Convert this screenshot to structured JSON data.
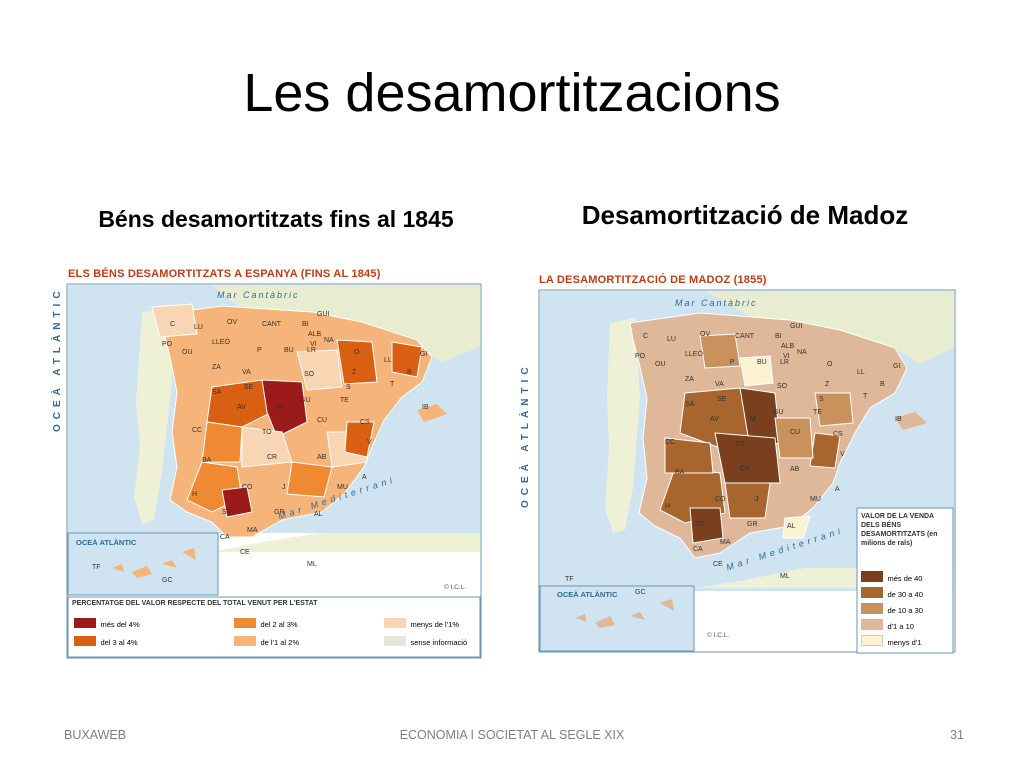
{
  "slide": {
    "title": "Les desamortitzacions",
    "footer_left": "BUXAWEB",
    "footer_center": "ECONOMIA I SOCIETAT AL SEGLE XIX",
    "page_number": "31"
  },
  "left_column": {
    "heading": "Béns desamortitzats fins al 1845",
    "map": {
      "title": "ELS BÉNS DESAMORTITZATS A ESPANYA (FINS AL 1845)",
      "sea_north": "Mar Cantàbric",
      "ocean_west": "OCEÀ ATLÀNTIC",
      "sea_south": "Mar Mediterrani",
      "inset_label": "OCEÀ ATLÀNTIC",
      "credit": "© I.C.L.",
      "legend_title": "PERCENTATGE DEL VALOR RESPECTE DEL TOTAL VENUT PER L'ESTAT",
      "legend": [
        {
          "label": "més del 4%",
          "color": "#9b1b1b"
        },
        {
          "label": "del 3 al 4%",
          "color": "#d95f12"
        },
        {
          "label": "del 2 al 3%",
          "color": "#ef8a32"
        },
        {
          "label": "de l'1 al 2%",
          "color": "#f5b47a"
        },
        {
          "label": "menys de l'1%",
          "color": "#f8d6b4"
        },
        {
          "label": "sense informació",
          "color": "#e5e5e0"
        }
      ],
      "provinces": [
        "C",
        "LU",
        "OV",
        "CANT",
        "BI",
        "GUI",
        "PO",
        "OU",
        "LLEÓ",
        "P",
        "BU",
        "LR",
        "NA",
        "ALB",
        "VI",
        "ZA",
        "VA",
        "SO",
        "O",
        "LL",
        "GI",
        "B",
        "SA",
        "SE",
        "AV",
        "M",
        "GU",
        "TE",
        "T",
        "CS",
        "CC",
        "TO",
        "CU",
        "V",
        "BA",
        "CR",
        "AB",
        "CO",
        "J",
        "MU",
        "A",
        "H",
        "SV",
        "GR",
        "AL",
        "CA",
        "MA",
        "CE",
        "ML",
        "IB",
        "TF",
        "GC",
        "Z",
        "S"
      ]
    }
  },
  "right_column": {
    "heading": "Desamortització de Madoz",
    "map": {
      "title": "LA DESAMORTITZACIÓ DE MADOZ (1855)",
      "sea_north": "Mar Cantàbric",
      "ocean_west": "OCEÀ ATLÀNTIC",
      "sea_south": "Mar Mediterrani",
      "inset_label": "OCEÀ ATLÀNTIC",
      "credit": "© I.C.L.",
      "legend_title": "VALOR DE LA VENDA DELS BÉNS DESAMORTITZATS (en milions de rals)",
      "legend": [
        {
          "label": "més de 40",
          "color": "#7a3f1c"
        },
        {
          "label": "de 30 a 40",
          "color": "#a8652e"
        },
        {
          "label": "de 10 a 30",
          "color": "#c9915c"
        },
        {
          "label": "d'1 a 10",
          "color": "#dfb89a"
        },
        {
          "label": "menys d'1",
          "color": "#fbf3cf"
        }
      ],
      "provinces": [
        "C",
        "LU",
        "OV",
        "CANT",
        "BI",
        "GUI",
        "PO",
        "OU",
        "LLEÓ",
        "P",
        "BU",
        "LR",
        "NA",
        "ALB",
        "VI",
        "ZA",
        "VA",
        "SO",
        "O",
        "LL",
        "GI",
        "B",
        "SA",
        "SE",
        "AV",
        "M",
        "GU",
        "TE",
        "T",
        "CS",
        "CC",
        "TO",
        "CU",
        "V",
        "BA",
        "CR",
        "AB",
        "CO",
        "J",
        "MU",
        "A",
        "H",
        "SV",
        "GR",
        "AL",
        "CA",
        "MA",
        "CE",
        "ML",
        "IB",
        "TF",
        "GC",
        "Z",
        "S"
      ]
    }
  }
}
